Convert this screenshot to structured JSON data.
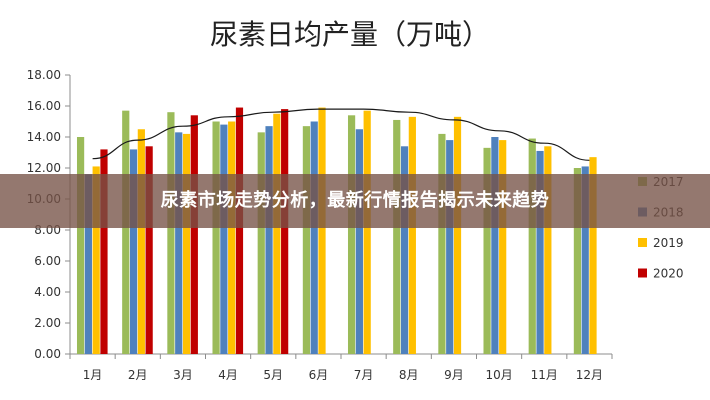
{
  "chart_data": {
    "type": "bar",
    "title": "尿素日均产量（万吨）",
    "categories": [
      "1月",
      "2月",
      "3月",
      "4月",
      "5月",
      "6月",
      "7月",
      "8月",
      "9月",
      "10月",
      "11月",
      "12月"
    ],
    "series": [
      {
        "name": "2017",
        "color": "#9BBB59",
        "values": [
          14.0,
          15.7,
          15.6,
          15.0,
          14.3,
          14.7,
          15.4,
          15.1,
          14.2,
          13.3,
          13.9,
          12.0
        ]
      },
      {
        "name": "2018",
        "color": "#4F81BD",
        "values": [
          11.6,
          13.2,
          14.3,
          14.8,
          14.7,
          15.0,
          14.5,
          13.4,
          13.8,
          14.0,
          13.1,
          12.1
        ]
      },
      {
        "name": "2019",
        "color": "#FFC000",
        "values": [
          12.1,
          14.5,
          14.2,
          15.0,
          15.5,
          15.9,
          15.7,
          15.3,
          15.3,
          13.8,
          13.4,
          12.7
        ]
      },
      {
        "name": "2020",
        "color": "#C00000",
        "values": [
          13.2,
          13.4,
          15.4,
          15.9,
          15.8,
          null,
          null,
          null,
          null,
          null,
          null,
          null
        ]
      }
    ],
    "trendline": {
      "type": "polynomial",
      "values": [
        12.6,
        13.8,
        14.7,
        15.3,
        15.6,
        15.8,
        15.8,
        15.6,
        15.1,
        14.4,
        13.6,
        12.5
      ]
    },
    "ylim": [
      0,
      18
    ],
    "yticks": [
      "0.00",
      "2.00",
      "4.00",
      "6.00",
      "8.00",
      "10.00",
      "12.00",
      "14.00",
      "16.00",
      "18.00"
    ],
    "grid": false,
    "legend_position": "right"
  },
  "overlay": {
    "caption": "尿素市场走势分析，最新行情报告揭示未来趋势"
  }
}
